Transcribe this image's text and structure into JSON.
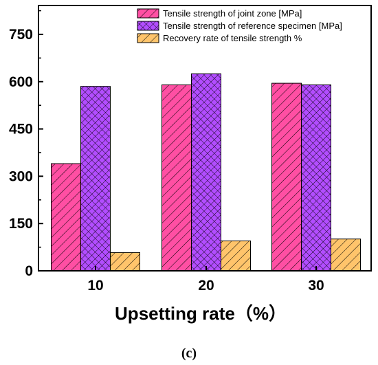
{
  "chart_data": {
    "type": "bar",
    "categories": [
      "10",
      "20",
      "30"
    ],
    "series": [
      {
        "name": "Tensile strength of joint zone [MPa]",
        "values": [
          340,
          590,
          595
        ],
        "color": "#ff4fa3",
        "pattern": "hatch-diag"
      },
      {
        "name": "Tensile strength of reference specimen [MPa]",
        "values": [
          585,
          625,
          590
        ],
        "color": "#b24dff",
        "pattern": "crosshatch"
      },
      {
        "name": "Recovery rate of  tensile strength %",
        "values": [
          58,
          95,
          101
        ],
        "color": "#ffc46b",
        "pattern": "hatch-diag"
      }
    ],
    "xlabel": "Upsetting rate（%）",
    "ylabel": "",
    "ylim": [
      0,
      825
    ],
    "yticks": [
      "0",
      "150",
      "300",
      "450",
      "600",
      "750"
    ],
    "legend_position": "top-right",
    "grid": false
  },
  "caption": "(c)"
}
